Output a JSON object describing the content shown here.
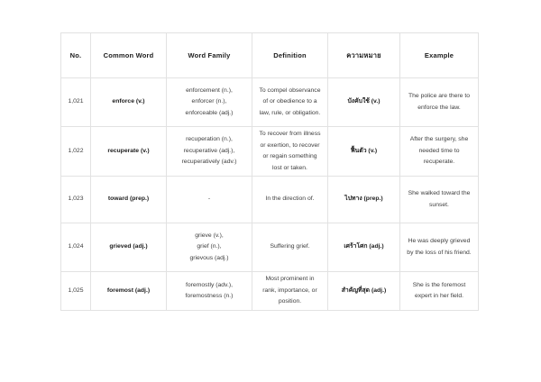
{
  "page": {
    "background": "#ffffff"
  },
  "colors": {
    "border": "#e2e2e2",
    "text": "#3d3d3d",
    "emphasis": "#1c1c1c",
    "background": "#ffffff"
  },
  "table": {
    "columns": [
      "no",
      "word",
      "family",
      "definition",
      "thai",
      "example"
    ],
    "header": {
      "no": "No.",
      "word": "Common Word",
      "family": "Word Family",
      "definition": "Definition",
      "thai": "ความหมาย",
      "example": "Example"
    },
    "rows": [
      {
        "no": "1,021",
        "word": "enforce (v.)",
        "family": [
          "enforcement (n.),",
          "enforcer (n.),",
          "enforceable (adj.)"
        ],
        "definition": "To compel observance of or obedience to a law, rule, or obligation.",
        "thai": "บังคับใช้ (v.)",
        "example": "The police are there to enforce the law."
      },
      {
        "no": "1,022",
        "word": "recuperate (v.)",
        "family": [
          "recuperation (n.),",
          "recuperative (adj.),",
          "recuperatively (adv.)"
        ],
        "definition": "To recover from illness or exertion, to recover or regain something lost or taken.",
        "thai": "ฟื้นตัว (v.)",
        "example": "After the surgery, she needed time to recuperate."
      },
      {
        "no": "1,023",
        "word": "toward (prep.)",
        "family": [
          "-"
        ],
        "definition": "In the direction of.",
        "thai": "ไปทาง (prep.)",
        "example": "She walked toward the sunset."
      },
      {
        "no": "1,024",
        "word": "grieved (adj.)",
        "family": [
          "grieve (v.),",
          "grief (n.),",
          "grievous (adj.)"
        ],
        "definition": "Suffering grief.",
        "thai": "เศร้าโศก (adj.)",
        "example": "He was deeply grieved by the loss of his friend."
      },
      {
        "no": "1,025",
        "word": "foremost (adj.)",
        "family": [
          "foremostly (adv.),",
          "foremostness (n.)"
        ],
        "definition": "Most prominent in rank, importance, or position.",
        "thai": "สำคัญที่สุด (adj.)",
        "example": "She is the foremost expert in her field."
      }
    ]
  }
}
